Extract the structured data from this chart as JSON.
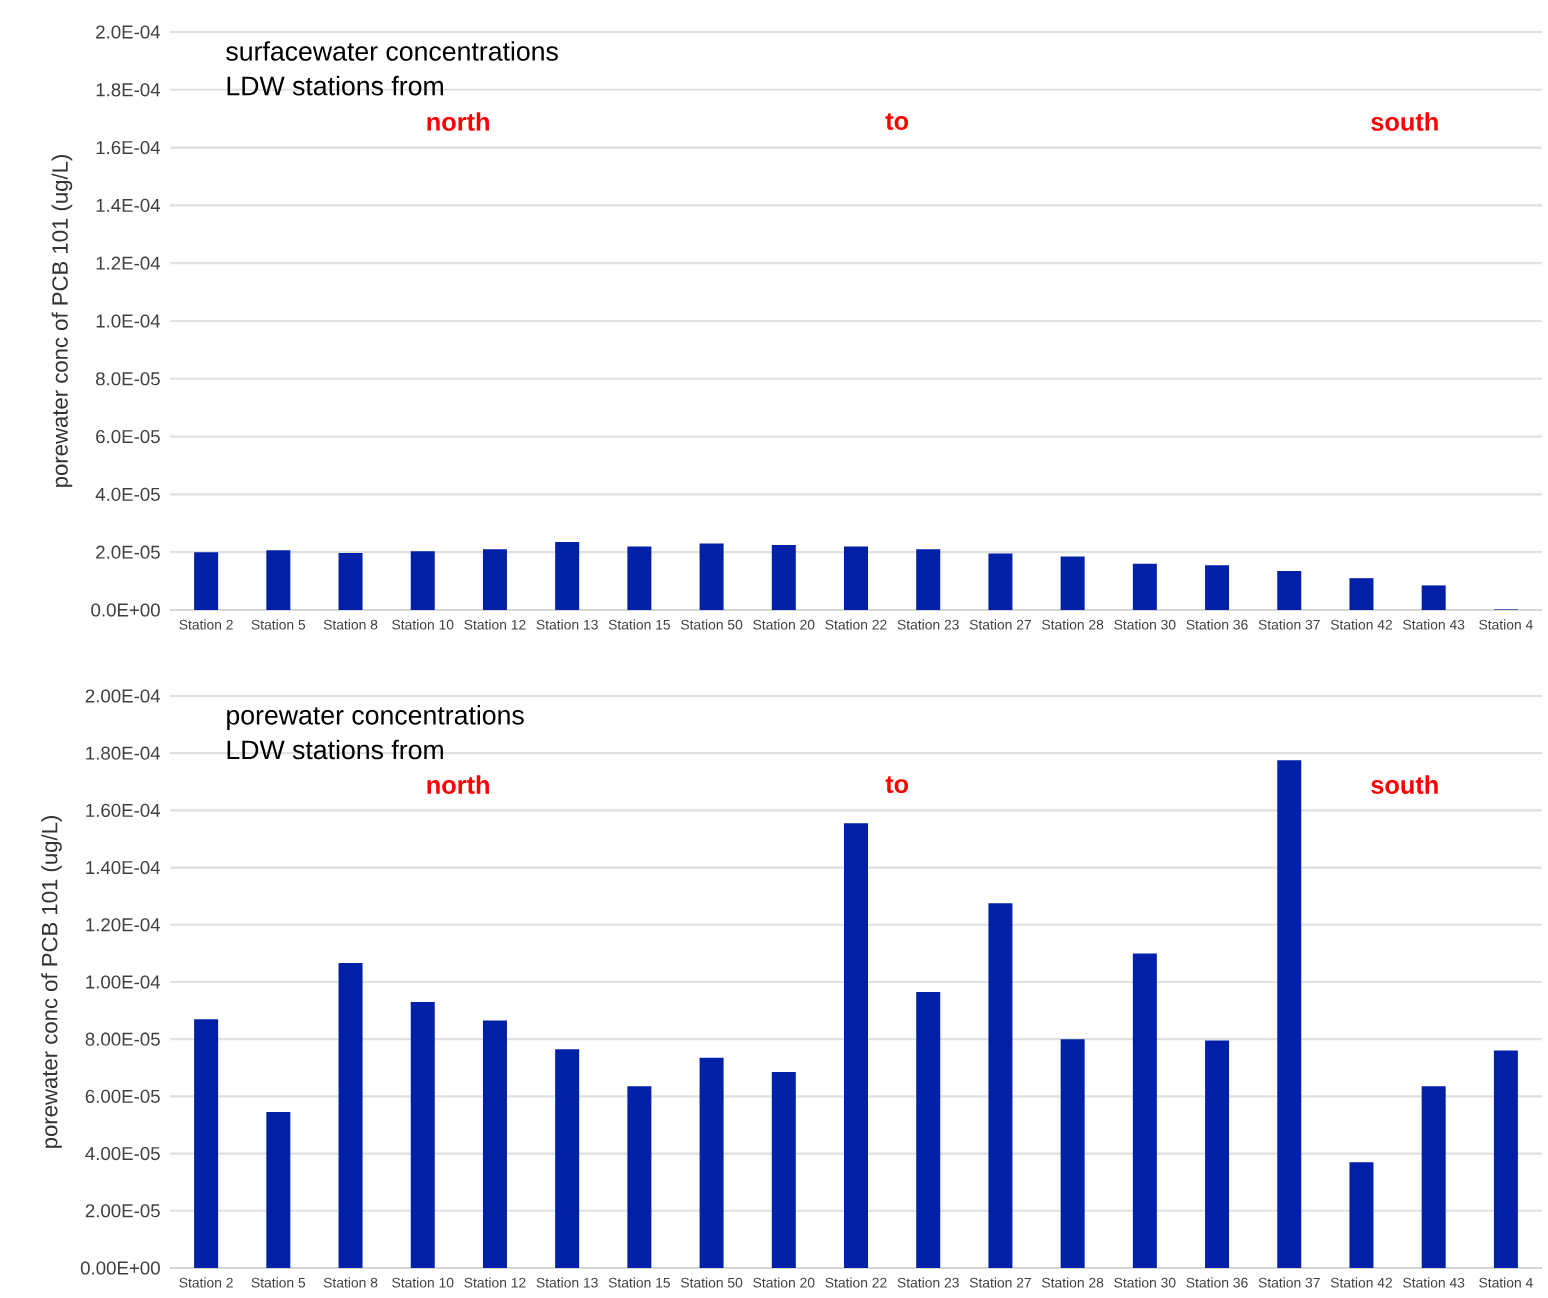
{
  "chart_data": [
    {
      "type": "bar",
      "title": "surfacewater concentrations",
      "subtitle": "LDW stations from",
      "annotations": [
        "north",
        "to",
        "south"
      ],
      "ylabel": "porewater conc of PCB 101 (ug/L)",
      "categories": [
        "Station 2",
        "Station 5",
        "Station 8",
        "Station 10",
        "Station 12",
        "Station 13",
        "Station 15",
        "Station 50",
        "Station 20",
        "Station 22",
        "Station 23",
        "Station 27",
        "Station 28",
        "Station 30",
        "Station 36",
        "Station 37",
        "Station 42",
        "Station 43",
        "Station 4"
      ],
      "values": [
        2e-05,
        2.07e-05,
        1.97e-05,
        2.03e-05,
        2.1e-05,
        2.35e-05,
        2.2e-05,
        2.3e-05,
        2.25e-05,
        2.2e-05,
        2.1e-05,
        1.95e-05,
        1.85e-05,
        1.6e-05,
        1.55e-05,
        1.35e-05,
        1.1e-05,
        8.5e-06,
        2e-07
      ],
      "color": "#0020a8",
      "ylim": [
        0,
        0.0002
      ],
      "yticks": [
        {
          "value": 0,
          "label": "0.0E+00"
        },
        {
          "value": 2e-05,
          "label": "2.0E-05"
        },
        {
          "value": 4e-05,
          "label": "4.0E-05"
        },
        {
          "value": 6e-05,
          "label": "6.0E-05"
        },
        {
          "value": 8e-05,
          "label": "8.0E-05"
        },
        {
          "value": 0.0001,
          "label": "1.0E-04"
        },
        {
          "value": 0.00012,
          "label": "1.2E-04"
        },
        {
          "value": 0.00014,
          "label": "1.4E-04"
        },
        {
          "value": 0.00016,
          "label": "1.6E-04"
        },
        {
          "value": 0.00018,
          "label": "1.8E-04"
        },
        {
          "value": 0.0002,
          "label": "2.0E-04"
        }
      ],
      "grid": "y"
    },
    {
      "type": "bar",
      "title": "porewater concentrations",
      "subtitle": "LDW stations from",
      "annotations": [
        "north",
        "to",
        "south"
      ],
      "ylabel": "porewater conc of PCB 101 (ug/L)",
      "categories": [
        "Station 2",
        "Station 5",
        "Station 8",
        "Station 10",
        "Station 12",
        "Station 13",
        "Station 15",
        "Station 50",
        "Station 20",
        "Station 22",
        "Station 23",
        "Station 27",
        "Station 28",
        "Station 30",
        "Station 36",
        "Station 37",
        "Station 42",
        "Station 43",
        "Station 4"
      ],
      "values": [
        8.7e-05,
        5.45e-05,
        0.0001066,
        9.3e-05,
        8.65e-05,
        7.65e-05,
        6.35e-05,
        7.35e-05,
        6.85e-05,
        0.0001555,
        9.65e-05,
        0.0001275,
        8e-05,
        0.00011,
        7.95e-05,
        0.0001775,
        3.7e-05,
        6.35e-05,
        7.6e-05
      ],
      "color": "#0020a8",
      "ylim": [
        0,
        0.0002
      ],
      "yticks": [
        {
          "value": 0,
          "label": "0.00E+00"
        },
        {
          "value": 2e-05,
          "label": "2.00E-05"
        },
        {
          "value": 4e-05,
          "label": "4.00E-05"
        },
        {
          "value": 6e-05,
          "label": "6.00E-05"
        },
        {
          "value": 8e-05,
          "label": "8.00E-05"
        },
        {
          "value": 0.0001,
          "label": "1.00E-04"
        },
        {
          "value": 0.00012,
          "label": "1.20E-04"
        },
        {
          "value": 0.00014,
          "label": "1.40E-04"
        },
        {
          "value": 0.00016,
          "label": "1.60E-04"
        },
        {
          "value": 0.00018,
          "label": "1.80E-04"
        },
        {
          "value": 0.0002,
          "label": "2.00E-04"
        }
      ],
      "grid": "y"
    }
  ]
}
